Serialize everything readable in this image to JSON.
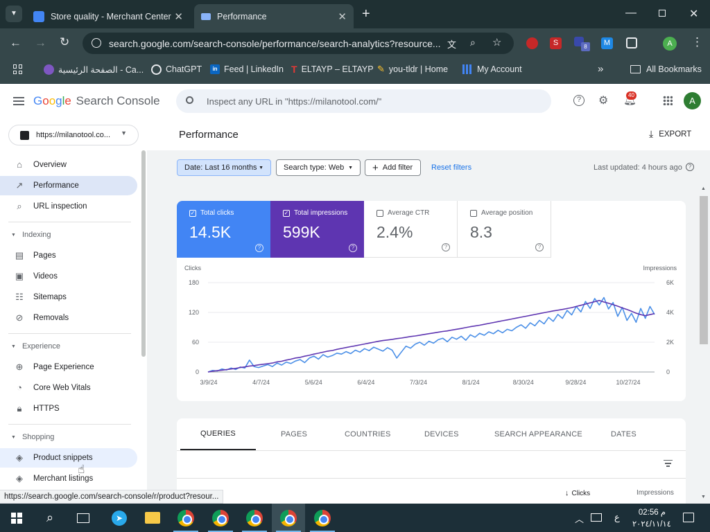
{
  "browser": {
    "tabs": [
      {
        "title": "Store quality - Merchant Center",
        "active": false
      },
      {
        "title": "Performance",
        "active": true
      }
    ],
    "url": "search.google.com/search-console/performance/search-analytics?resource...",
    "bookmarks": [
      "الصفحة الرئيسية - Ca...",
      "ChatGPT",
      "Feed | LinkedIn",
      "ELTAYP – ELTAYP",
      "you-tldr | Home",
      "My Account"
    ],
    "all_bookmarks": "All Bookmarks",
    "profile_initial": "A",
    "ext_badge": "8"
  },
  "header": {
    "logo_google": "Google",
    "logo_product": "Search Console",
    "search_placeholder": "Inspect any URL in \"https://milanotool.com/\"",
    "notifications_count": "40",
    "avatar_initial": "A"
  },
  "sidebar": {
    "property": "https://milanotool.co...",
    "top_items": [
      {
        "label": "Overview",
        "icon": "home-icon"
      },
      {
        "label": "Performance",
        "icon": "trending-icon",
        "selected": true
      },
      {
        "label": "URL inspection",
        "icon": "search-icon"
      }
    ],
    "sections": [
      {
        "title": "Indexing",
        "items": [
          {
            "label": "Pages",
            "icon": "pages-icon"
          },
          {
            "label": "Videos",
            "icon": "video-icon"
          },
          {
            "label": "Sitemaps",
            "icon": "sitemap-icon"
          },
          {
            "label": "Removals",
            "icon": "removals-icon"
          }
        ]
      },
      {
        "title": "Experience",
        "items": [
          {
            "label": "Page Experience",
            "icon": "page-experience-icon"
          },
          {
            "label": "Core Web Vitals",
            "icon": "speed-icon"
          },
          {
            "label": "HTTPS",
            "icon": "lock-icon"
          }
        ]
      },
      {
        "title": "Shopping",
        "items": [
          {
            "label": "Product snippets",
            "icon": "layers-icon",
            "hover": true
          },
          {
            "label": "Merchant listings",
            "icon": "layers-icon"
          }
        ]
      }
    ]
  },
  "page": {
    "title": "Performance",
    "export_label": "EXPORT",
    "filters": {
      "date": "Date: Last 16 months",
      "search_type": "Search type: Web",
      "add_filter": "Add filter",
      "reset": "Reset filters"
    },
    "last_updated": "Last updated: 4 hours ago"
  },
  "metrics": [
    {
      "label": "Total clicks",
      "value": "14.5K",
      "checked": true,
      "color": "#4285f4"
    },
    {
      "label": "Total impressions",
      "value": "599K",
      "checked": true,
      "color": "#5e35b1"
    },
    {
      "label": "Average CTR",
      "value": "2.4%",
      "checked": false
    },
    {
      "label": "Average position",
      "value": "8.3",
      "checked": false
    }
  ],
  "chart_data": {
    "type": "line",
    "left_axis_label": "Clicks",
    "right_axis_label": "Impressions",
    "left_ticks": [
      "180",
      "120",
      "60",
      "0"
    ],
    "right_ticks": [
      "6K",
      "4K",
      "2K",
      "0"
    ],
    "x_ticks": [
      "3/9/24",
      "4/7/24",
      "5/6/24",
      "6/4/24",
      "7/3/24",
      "8/1/24",
      "8/30/24",
      "9/28/24",
      "10/27/24"
    ],
    "ylim_left": [
      0,
      180
    ],
    "ylim_right": [
      0,
      6000
    ],
    "grid": true,
    "series": [
      {
        "name": "Clicks",
        "axis": "left",
        "color": "#4a8fe7",
        "values": [
          0,
          3,
          2,
          6,
          4,
          8,
          5,
          10,
          8,
          24,
          11,
          9,
          12,
          15,
          11,
          18,
          14,
          20,
          17,
          22,
          25,
          19,
          28,
          32,
          26,
          35,
          30,
          33,
          38,
          36,
          41,
          37,
          44,
          40,
          47,
          43,
          50,
          46,
          42,
          49,
          44,
          28,
          40,
          52,
          48,
          56,
          60,
          54,
          62,
          58,
          65,
          68,
          61,
          70,
          66,
          72,
          64,
          75,
          70,
          78,
          74,
          81,
          77,
          84,
          79,
          86,
          83,
          90,
          95,
          88,
          99,
          93,
          104,
          97,
          110,
          102,
          116,
          108,
          124,
          115,
          132,
          121,
          142,
          128,
          148,
          135,
          150,
          127,
          140,
          112,
          130,
          104,
          118,
          100,
          128,
          108,
          132,
          116
        ]
      },
      {
        "name": "Impressions",
        "axis": "right",
        "color": "#5e35b1",
        "values": [
          0,
          50,
          90,
          120,
          160,
          200,
          240,
          300,
          340,
          400,
          430,
          480,
          520,
          560,
          600,
          680,
          720,
          800,
          860,
          940,
          980,
          1060,
          1120,
          1200,
          1260,
          1330,
          1400,
          1440,
          1520,
          1580,
          1640,
          1700,
          1760,
          1820,
          1880,
          1940,
          2000,
          2060,
          2110,
          2150,
          2190,
          2240,
          2280,
          2330,
          2380,
          2420,
          2470,
          2520,
          2570,
          2620,
          2670,
          2720,
          2760,
          2820,
          2870,
          2920,
          2980,
          3040,
          3090,
          3140,
          3200,
          3260,
          3320,
          3380,
          3440,
          3500,
          3560,
          3620,
          3680,
          3740,
          3800,
          3860,
          3920,
          3980,
          4040,
          4100,
          4150,
          4200,
          4260,
          4320,
          4400,
          4480,
          4560,
          4640,
          4720,
          4800,
          4700,
          4620,
          4520,
          4420,
          4300,
          4200,
          4080,
          3950,
          3850,
          3780,
          3850,
          3920
        ]
      }
    ]
  },
  "table": {
    "tabs": [
      "QUERIES",
      "PAGES",
      "COUNTRIES",
      "DEVICES",
      "SEARCH APPEARANCE",
      "DATES"
    ],
    "active_tab": "QUERIES",
    "columns": [
      "Clicks",
      "Impressions"
    ],
    "sort_column": "Clicks"
  },
  "status_url": "https://search.google.com/search-console/r/product?resour...",
  "taskbar": {
    "time": "02:56 م",
    "date": "٢٠٢٤/١١/١٤",
    "lang": "ع"
  }
}
